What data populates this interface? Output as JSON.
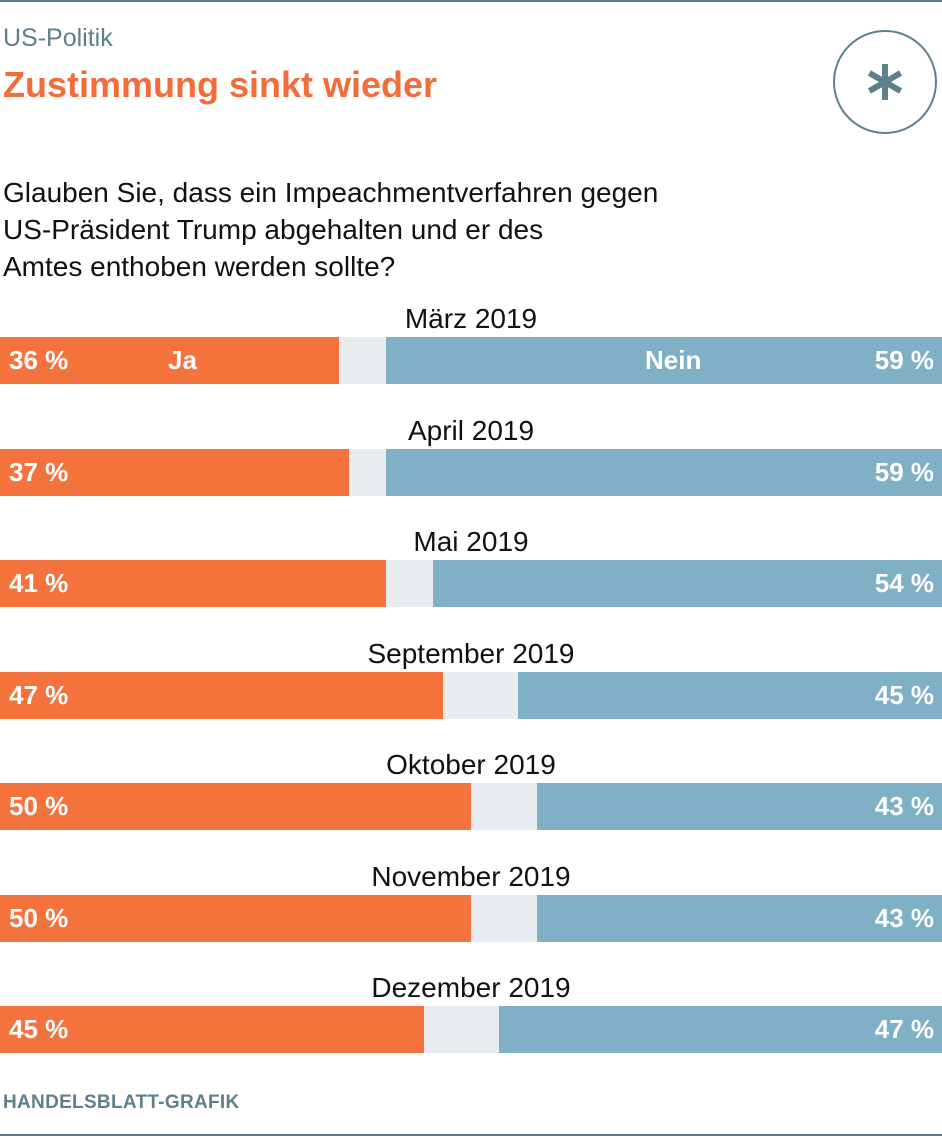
{
  "header": {
    "kicker": "US-Politik",
    "title": "Zustimmung sinkt wieder",
    "logo_icon": "asterisk-icon"
  },
  "colors": {
    "yes": "#f4723b",
    "no": "#7fb0c5",
    "undecided": "#e9ecee",
    "accent_title": "#f26d3a",
    "muted": "#5f7f8c"
  },
  "chart_data": {
    "type": "bar",
    "orientation": "horizontal-stacked",
    "title": "Glauben Sie, dass ein Impeachmentverfahren gegen US-Präsident Trump abgehalten und er des Amtes enthoben werden sollte?",
    "categories": [
      "März 2019",
      "April 2019",
      "Mai 2019",
      "September 2019",
      "Oktober 2019",
      "November 2019",
      "Dezember 2019"
    ],
    "series": [
      {
        "name": "Ja",
        "values": [
          36,
          37,
          41,
          47,
          50,
          50,
          45
        ]
      },
      {
        "name": "Nein",
        "values": [
          59,
          59,
          54,
          45,
          43,
          43,
          47
        ]
      }
    ],
    "value_labels_yes": [
      "36 %",
      "37 %",
      "41  %",
      "47 %",
      "50 %",
      "50 %",
      "45 %"
    ],
    "value_labels_no": [
      "59 %",
      "59 %",
      "54 %",
      "45 %",
      "43 %",
      "43 %",
      "47 %"
    ],
    "xlim": [
      0,
      100
    ]
  },
  "question_lines": [
    "Glauben Sie, dass ein Impeachmentverfahren gegen",
    "US-Präsident Trump abgehalten und er des",
    "Amtes enthoben werden sollte?"
  ],
  "source": "HANDELSBLATT-GRAFIK"
}
